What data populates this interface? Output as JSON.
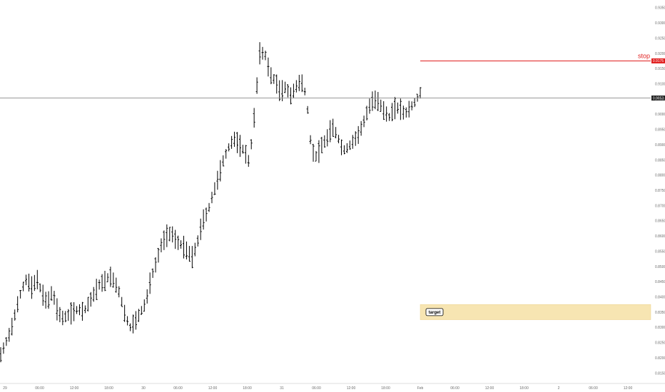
{
  "chart_data": {
    "type": "ohlc",
    "y_axis": {
      "min": 0.8125,
      "max": 0.9375,
      "ticks": [
        "0.9350",
        "0.9300",
        "0.9250",
        "0.9200",
        "0.9150",
        "0.9100",
        "0.9050",
        "0.9000",
        "0.8950",
        "0.8900",
        "0.8850",
        "0.8800",
        "0.8750",
        "0.8700",
        "0.8650",
        "0.8600",
        "0.8550",
        "0.8500",
        "0.8450",
        "0.8400",
        "0.8350",
        "0.8300",
        "0.8250",
        "0.8200",
        "0.8150"
      ]
    },
    "x_axis": {
      "tick_labels": [
        "29",
        "06:00",
        "12:00",
        "18:00",
        "30",
        "06:00",
        "12:00",
        "18:00",
        "31",
        "06:00",
        "12:00",
        "18:00",
        "Feb",
        "06:00",
        "12:00",
        "18:00",
        "2",
        "06:00",
        "12:00"
      ]
    },
    "anchors": [
      [
        0,
        0.821
      ],
      [
        1,
        0.825
      ],
      [
        2,
        0.829
      ],
      [
        3,
        0.836
      ],
      [
        4,
        0.842
      ],
      [
        5,
        0.846
      ],
      [
        6,
        0.843
      ],
      [
        7,
        0.846
      ],
      [
        8,
        0.841
      ],
      [
        9,
        0.838
      ],
      [
        10,
        0.842
      ],
      [
        11,
        0.835
      ],
      [
        12,
        0.833
      ],
      [
        13,
        0.834
      ],
      [
        14,
        0.835
      ],
      [
        15,
        0.836
      ],
      [
        16,
        0.835
      ],
      [
        17,
        0.838
      ],
      [
        18,
        0.841
      ],
      [
        19,
        0.844
      ],
      [
        20,
        0.845
      ],
      [
        21,
        0.847
      ],
      [
        22,
        0.845
      ],
      [
        23,
        0.841
      ],
      [
        24,
        0.834
      ],
      [
        25,
        0.83
      ],
      [
        26,
        0.832
      ],
      [
        27,
        0.835
      ],
      [
        28,
        0.838
      ],
      [
        29,
        0.846
      ],
      [
        30,
        0.851
      ],
      [
        31,
        0.857
      ],
      [
        32,
        0.86
      ],
      [
        33,
        0.861
      ],
      [
        34,
        0.858
      ],
      [
        35,
        0.857
      ],
      [
        36,
        0.855
      ],
      [
        37,
        0.853
      ],
      [
        38,
        0.858
      ],
      [
        39,
        0.865
      ],
      [
        40,
        0.868
      ],
      [
        41,
        0.874
      ],
      [
        42,
        0.879
      ],
      [
        43,
        0.885
      ],
      [
        44,
        0.889
      ],
      [
        45,
        0.892
      ],
      [
        46,
        0.89
      ],
      [
        47,
        0.888
      ],
      [
        48,
        0.884
      ],
      [
        49,
        0.9
      ],
      [
        50,
        0.92
      ],
      [
        51,
        0.92
      ],
      [
        52,
        0.913
      ],
      [
        53,
        0.911
      ],
      [
        54,
        0.907
      ],
      [
        55,
        0.909
      ],
      [
        56,
        0.906
      ],
      [
        57,
        0.909
      ],
      [
        58,
        0.911
      ],
      [
        59,
        0.906
      ],
      [
        60,
        0.888
      ],
      [
        61,
        0.886
      ],
      [
        62,
        0.89
      ],
      [
        63,
        0.892
      ],
      [
        64,
        0.896
      ],
      [
        65,
        0.893
      ],
      [
        66,
        0.888
      ],
      [
        67,
        0.889
      ],
      [
        68,
        0.891
      ],
      [
        69,
        0.893
      ],
      [
        70,
        0.897
      ],
      [
        71,
        0.902
      ],
      [
        72,
        0.905
      ],
      [
        73,
        0.904
      ],
      [
        74,
        0.901
      ],
      [
        75,
        0.899
      ],
      [
        76,
        0.902
      ],
      [
        77,
        0.902
      ],
      [
        78,
        0.9
      ],
      [
        79,
        0.902
      ],
      [
        80,
        0.904
      ],
      [
        81,
        0.907
      ]
    ],
    "last_price": "0.9053",
    "lines": [
      {
        "label": "stop",
        "price": 0.9175,
        "tag": "0.9175",
        "color": "#e01e1e"
      }
    ],
    "zones": [
      {
        "label": "target",
        "from": 0.8325,
        "to": 0.8375,
        "color": "#f7e5b2"
      }
    ]
  }
}
